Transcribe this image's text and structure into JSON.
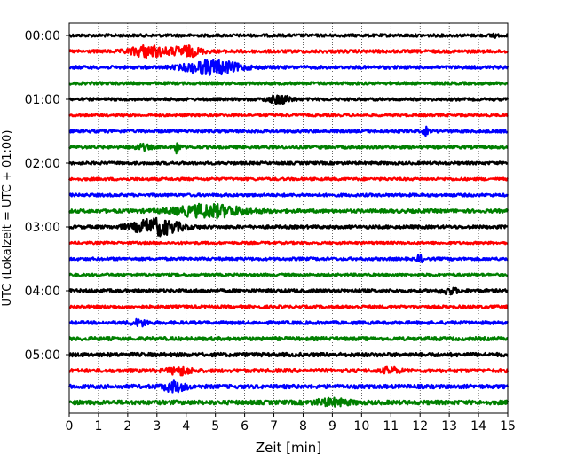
{
  "chart_data": {
    "type": "line",
    "xlabel": "Zeit  [min]",
    "ylabel": "UTC (Lokalzeit = UTC + 01:00)",
    "xlim": [
      0,
      15
    ],
    "x_ticks": [
      0,
      1,
      2,
      3,
      4,
      5,
      6,
      7,
      8,
      9,
      10,
      11,
      12,
      13,
      14,
      15
    ],
    "y_tick_labels": [
      "00:00",
      "01:00",
      "02:00",
      "03:00",
      "04:00",
      "05:00"
    ],
    "grid": "vertical dotted",
    "trace_colors": [
      "#000000",
      "#ff0000",
      "#0000ff",
      "#008000"
    ],
    "traces": [
      {
        "start": "00:00",
        "amplitude": 0.18,
        "events": [
          {
            "t": 14.5,
            "amp": 0.35,
            "width": 0.08
          }
        ]
      },
      {
        "start": "00:15",
        "amplitude": 0.2,
        "events": [
          {
            "t": 2.7,
            "amp": 0.7,
            "width": 0.6
          },
          {
            "t": 4.0,
            "amp": 0.6,
            "width": 0.5
          }
        ]
      },
      {
        "start": "00:30",
        "amplitude": 0.2,
        "events": [
          {
            "t": 4.9,
            "amp": 0.85,
            "width": 0.9
          }
        ]
      },
      {
        "start": "00:45",
        "amplitude": 0.18,
        "events": []
      },
      {
        "start": "01:00",
        "amplitude": 0.18,
        "events": [
          {
            "t": 7.2,
            "amp": 0.5,
            "width": 0.4
          }
        ]
      },
      {
        "start": "01:15",
        "amplitude": 0.15,
        "events": []
      },
      {
        "start": "01:30",
        "amplitude": 0.18,
        "events": [
          {
            "t": 12.2,
            "amp": 0.45,
            "width": 0.1
          }
        ]
      },
      {
        "start": "01:45",
        "amplitude": 0.18,
        "events": [
          {
            "t": 3.7,
            "amp": 0.9,
            "width": 0.08
          },
          {
            "t": 2.5,
            "amp": 0.3,
            "width": 0.3
          }
        ]
      },
      {
        "start": "02:00",
        "amplitude": 0.18,
        "events": []
      },
      {
        "start": "02:15",
        "amplitude": 0.17,
        "events": []
      },
      {
        "start": "02:30",
        "amplitude": 0.18,
        "events": []
      },
      {
        "start": "02:45",
        "amplitude": 0.22,
        "events": [
          {
            "t": 4.8,
            "amp": 0.75,
            "width": 1.2
          }
        ]
      },
      {
        "start": "03:00",
        "amplitude": 0.2,
        "events": [
          {
            "t": 3.0,
            "amp": 1.0,
            "width": 0.8
          }
        ]
      },
      {
        "start": "03:15",
        "amplitude": 0.15,
        "events": []
      },
      {
        "start": "03:30",
        "amplitude": 0.18,
        "events": [
          {
            "t": 12.0,
            "amp": 0.6,
            "width": 0.08
          }
        ]
      },
      {
        "start": "03:45",
        "amplitude": 0.16,
        "events": []
      },
      {
        "start": "04:00",
        "amplitude": 0.2,
        "events": [
          {
            "t": 13.0,
            "amp": 0.35,
            "width": 0.3
          }
        ]
      },
      {
        "start": "04:15",
        "amplitude": 0.18,
        "events": []
      },
      {
        "start": "04:30",
        "amplitude": 0.2,
        "events": [
          {
            "t": 2.4,
            "amp": 0.35,
            "width": 0.3
          }
        ]
      },
      {
        "start": "04:45",
        "amplitude": 0.22,
        "events": []
      },
      {
        "start": "05:00",
        "amplitude": 0.24,
        "events": []
      },
      {
        "start": "05:15",
        "amplitude": 0.22,
        "events": [
          {
            "t": 3.8,
            "amp": 0.45,
            "width": 0.4
          },
          {
            "t": 11.0,
            "amp": 0.35,
            "width": 0.3
          }
        ]
      },
      {
        "start": "05:30",
        "amplitude": 0.24,
        "events": [
          {
            "t": 3.6,
            "amp": 0.55,
            "width": 0.4
          }
        ]
      },
      {
        "start": "05:45",
        "amplitude": 0.26,
        "events": [
          {
            "t": 9.0,
            "amp": 0.35,
            "width": 0.6
          }
        ]
      }
    ]
  }
}
